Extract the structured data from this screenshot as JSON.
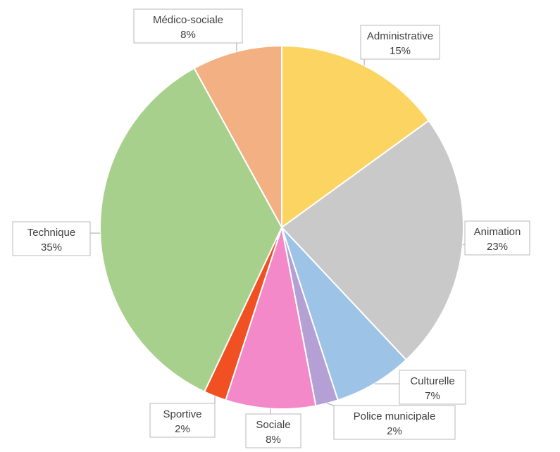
{
  "chart_data": {
    "type": "pie",
    "title": "",
    "slices": [
      {
        "label": "Administrative",
        "value": 15,
        "value_label": "15%",
        "color": "#FCD462"
      },
      {
        "label": "Animation",
        "value": 23,
        "value_label": "23%",
        "color": "#C9C9C9"
      },
      {
        "label": "Culturelle",
        "value": 7,
        "value_label": "7%",
        "color": "#9DC3E6"
      },
      {
        "label": "Police municipale",
        "value": 2,
        "value_label": "2%",
        "color": "#B4A0D4"
      },
      {
        "label": "Sociale",
        "value": 8,
        "value_label": "8%",
        "color": "#F389C8"
      },
      {
        "label": "Sportive",
        "value": 2,
        "value_label": "2%",
        "color": "#F05022"
      },
      {
        "label": "Technique",
        "value": 35,
        "value_label": "35%",
        "color": "#A7D08C"
      },
      {
        "label": "Médico-sociale",
        "value": 8,
        "value_label": "8%",
        "color": "#F2B083"
      }
    ],
    "start_angle": "12 o'clock",
    "direction": "clockwise",
    "legend": "none"
  }
}
